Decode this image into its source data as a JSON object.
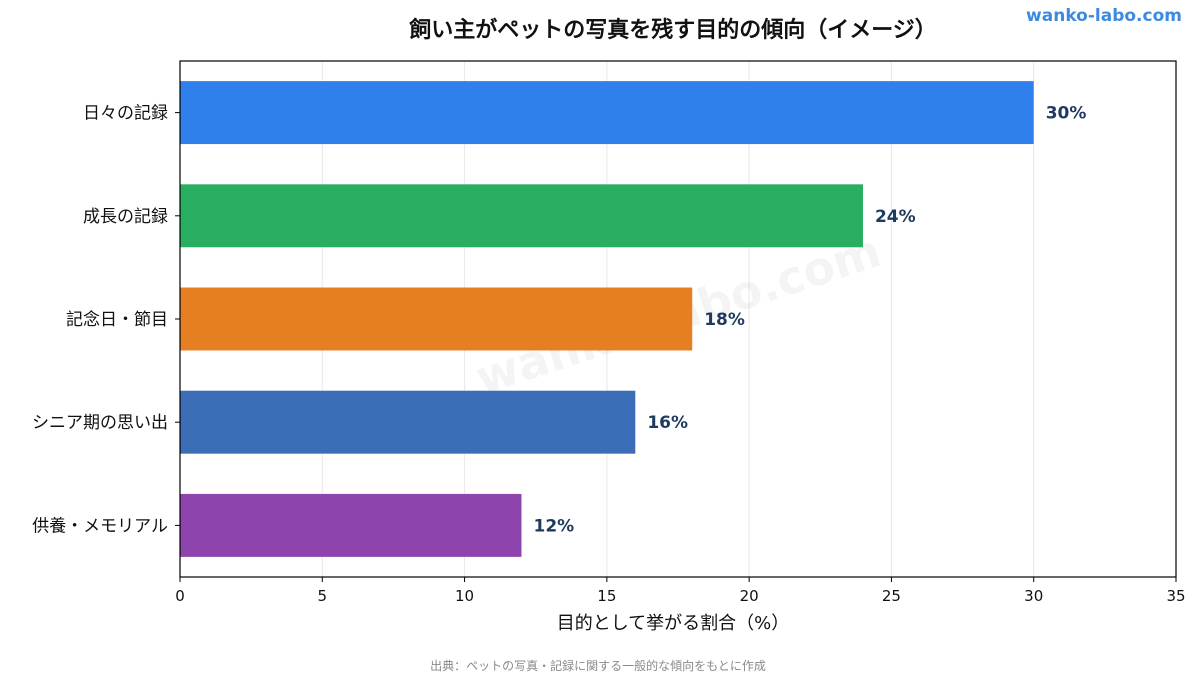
{
  "brand": "wanko-labo.com",
  "watermark": "wanko-labo.com",
  "source_note": "出典：ペットの写真・記録に関する一般的な傾向をもとに作成",
  "chart_data": {
    "type": "bar",
    "orientation": "horizontal",
    "title": "飼い主がペットの写真を残す目的の傾向（イメージ）",
    "xlabel": "目的として挙がる割合（%）",
    "ylabel": "",
    "xlim": [
      0,
      35
    ],
    "xticks": [
      0,
      5,
      10,
      15,
      20,
      25,
      30,
      35
    ],
    "grid": "vertical",
    "categories": [
      "日々の記録",
      "成長の記録",
      "記念日・節目",
      "シニア期の思い出",
      "供養・メモリアル"
    ],
    "values": [
      30,
      24,
      18,
      16,
      12
    ],
    "value_labels": [
      "30%",
      "24%",
      "18%",
      "16%",
      "12%"
    ],
    "colors": [
      "#2f80ed",
      "#27ae60",
      "#e67e22",
      "#3c6eb8",
      "#8e44ad"
    ],
    "label_color": "#1f3a5f"
  }
}
